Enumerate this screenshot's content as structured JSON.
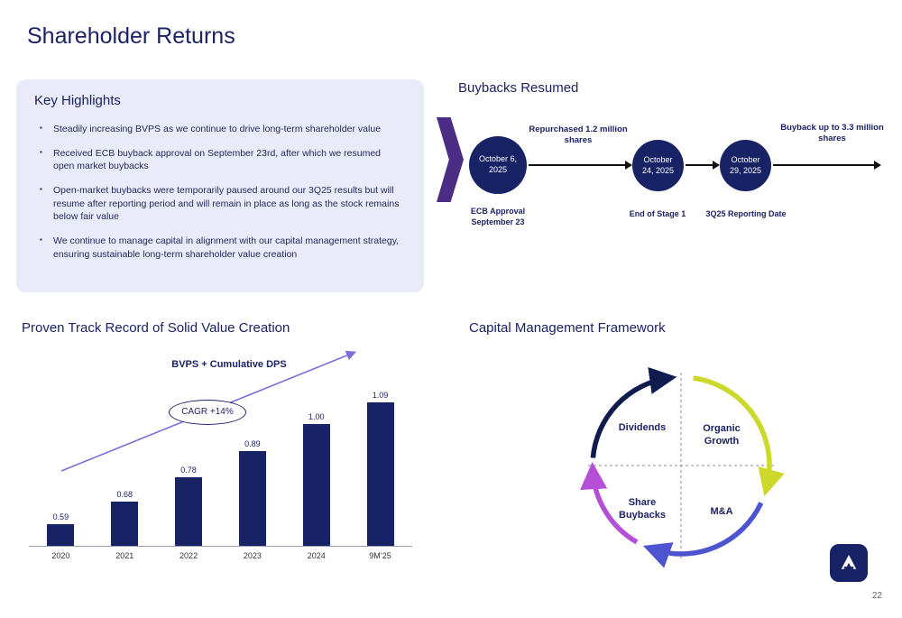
{
  "slide": {
    "title": "Shareholder Returns",
    "page_number": "22"
  },
  "key_highlights": {
    "title": "Key Highlights",
    "bullets": [
      "Steadily increasing BVPS as we continue to drive long-term shareholder value",
      "Received ECB buyback approval on September 23rd, after which we resumed open market buybacks",
      "Open-market buybacks were temporarily paused around our 3Q25 results but will resume after reporting period and will remain in place as long as the stock remains below fair value",
      "We continue to manage capital in alignment with our capital management strategy, ensuring sustainable long-term shareholder value creation"
    ]
  },
  "buybacks": {
    "section_title": "Buybacks Resumed",
    "nodes": [
      {
        "circle_text": "October 6, 2025",
        "caption": "ECB Approval September 23"
      },
      {
        "circle_text": "October 24, 2025",
        "caption": "End of Stage 1"
      },
      {
        "circle_text": "October 29, 2025",
        "caption": "3Q25 Reporting Date"
      }
    ],
    "arrow1_label": "Repurchased 1.2 million shares",
    "arrow2_label": "Buyback up to 3.3 million shares"
  },
  "value_creation": {
    "section_title": "Proven Track Record of Solid Value Creation"
  },
  "chart_data": {
    "type": "bar",
    "title": "BVPS + Cumulative DPS",
    "categories": [
      "2020",
      "2021",
      "2022",
      "2023",
      "2024",
      "9M’25"
    ],
    "values": [
      0.59,
      0.68,
      0.78,
      0.89,
      1.0,
      1.09
    ],
    "value_labels": [
      "0.59",
      "0.68",
      "0.78",
      "0.89",
      "1.00",
      "1.09"
    ],
    "annotation": "CAGR +14%",
    "xlabel": "",
    "ylabel": "",
    "ylim": [
      0.5,
      1.15
    ],
    "grid": false,
    "legend": false,
    "bar_color": "#172364",
    "trend_color": "#7a6fd9"
  },
  "capital_framework": {
    "section_title": "Capital Management Framework",
    "quadrants": {
      "top_left": "Dividends",
      "top_right": "Organic Growth",
      "bottom_left": "Share Buybacks",
      "bottom_right": "M&A"
    },
    "arc_colors": {
      "top_left": "#111c4e",
      "top_right": "#ccd92a",
      "bottom_right": "#4c55cf",
      "bottom_left": "#b64fd8"
    }
  },
  "colors": {
    "navy": "#1c2264",
    "panel_background": "#e9ecf8",
    "chevron_purple": "#4b2d85",
    "arrow_black": "#111111"
  }
}
